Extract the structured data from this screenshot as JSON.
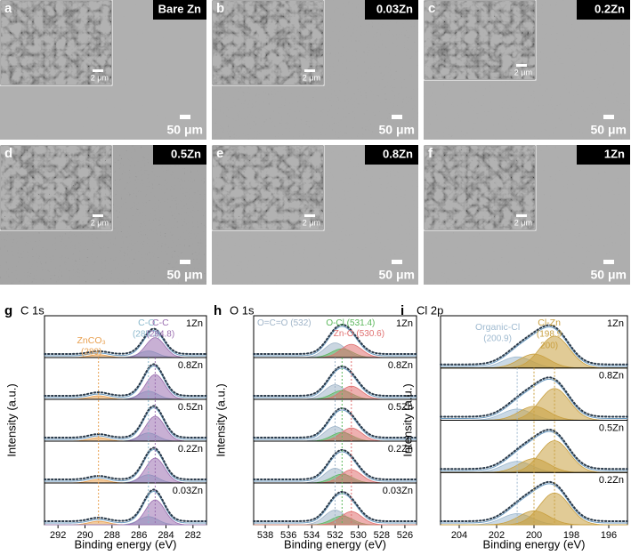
{
  "sem_panels": [
    {
      "letter": "a",
      "sample": "Bare Zn",
      "scale_bar": "50 μm",
      "inset_scale_bar": "2 μm"
    },
    {
      "letter": "b",
      "sample": "0.03Zn",
      "scale_bar": "50 μm",
      "inset_scale_bar": "2 μm"
    },
    {
      "letter": "c",
      "sample": "0.2Zn",
      "scale_bar": "50 μm",
      "inset_scale_bar": "2 μm"
    },
    {
      "letter": "d",
      "sample": "0.5Zn",
      "scale_bar": "50 μm",
      "inset_scale_bar": "2 μm"
    },
    {
      "letter": "e",
      "sample": "0.8Zn",
      "scale_bar": "50 μm",
      "inset_scale_bar": "2 μm"
    },
    {
      "letter": "f",
      "sample": "1Zn",
      "scale_bar": "50 μm",
      "inset_scale_bar": "2 μm"
    }
  ],
  "spectra": [
    {
      "letter": "g",
      "region": "C 1s",
      "x_label": "Binding energy (eV)",
      "y_label": "Intensity (a.u.)",
      "xlim": [
        293,
        281
      ],
      "xticks": [
        292,
        290,
        288,
        286,
        284,
        282
      ],
      "samples": [
        "1Zn",
        "0.8Zn",
        "0.5Zn",
        "0.2Zn",
        "0.03Zn"
      ],
      "peaks": [
        {
          "name": "ZnCO₃",
          "color": "#e8a050",
          "positions": [
            {
              "value": 289,
              "label": "(289)"
            }
          ]
        },
        {
          "name": "C-O",
          "color": "#8ab8cc",
          "positions": [
            {
              "value": 285.3,
              "label": "(285.3)"
            }
          ]
        },
        {
          "name": "C-C",
          "color": "#9b6fb0",
          "positions": [
            {
              "value": 284.8,
              "label": "(284.8)"
            }
          ]
        }
      ]
    },
    {
      "letter": "h",
      "region": "O 1s",
      "x_label": "Binding energy (eV)",
      "y_label": "Intensity (a.u.)",
      "xlim": [
        539,
        525
      ],
      "xticks": [
        538,
        536,
        534,
        532,
        530,
        528,
        526
      ],
      "samples": [
        "1Zn",
        "0.8Zn",
        "0.5Zn",
        "0.2Zn",
        "0.03Zn"
      ],
      "peaks": [
        {
          "name": "O=C=O",
          "color": "#9fb4c8",
          "positions": [
            {
              "value": 532,
              "label": "(532)"
            }
          ]
        },
        {
          "name": "O-Cl",
          "color": "#5cb85c",
          "positions": [
            {
              "value": 531.4,
              "label": "(531.4)"
            }
          ]
        },
        {
          "name": "Zn-O",
          "color": "#e07070",
          "positions": [
            {
              "value": 530.6,
              "label": "(530.6)"
            }
          ]
        }
      ]
    },
    {
      "letter": "i",
      "region": "Cl 2p",
      "x_label": "Binding energy (eV)",
      "y_label": "Intensity (a.u.)",
      "xlim": [
        205,
        195
      ],
      "xticks": [
        204,
        202,
        200,
        198,
        196
      ],
      "samples": [
        "1Zn",
        "0.8Zn",
        "0.5Zn",
        "0.2Zn"
      ],
      "peaks": [
        {
          "name": "Organic-Cl",
          "color": "#9fbad0",
          "positions": [
            {
              "value": 200.9,
              "label": "(200.9)"
            }
          ]
        },
        {
          "name": "Cl-Zn",
          "color": "#c9a040",
          "positions": [
            {
              "value": 198.9,
              "label": "(198.9"
            },
            {
              "value": 200,
              "label": "200)"
            }
          ]
        }
      ]
    }
  ]
}
